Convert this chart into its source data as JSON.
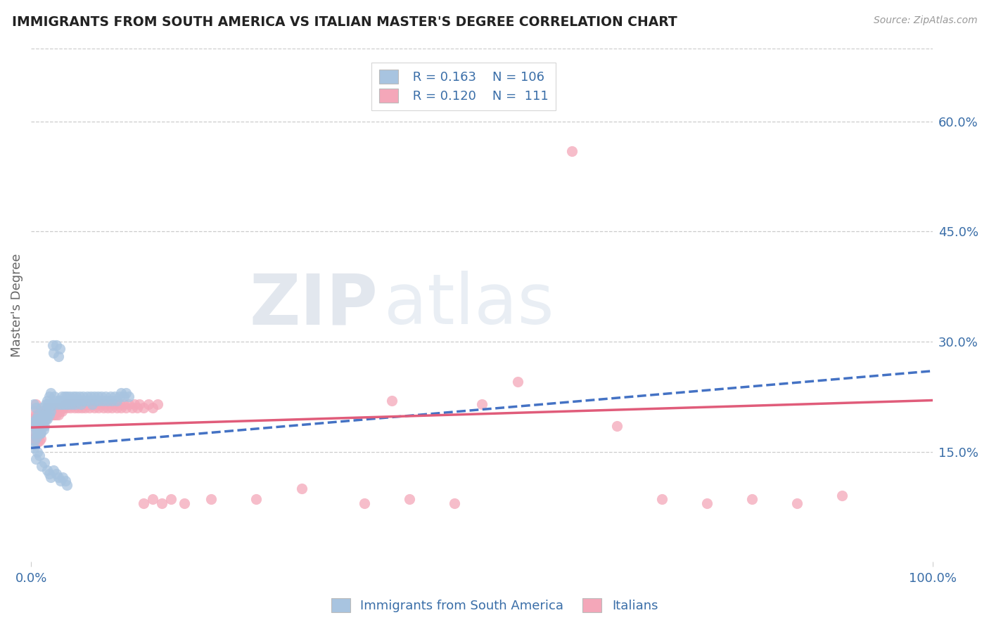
{
  "title": "IMMIGRANTS FROM SOUTH AMERICA VS ITALIAN MASTER'S DEGREE CORRELATION CHART",
  "source": "Source: ZipAtlas.com",
  "ylabel": "Master's Degree",
  "right_yticks": [
    "60.0%",
    "45.0%",
    "30.0%",
    "15.0%"
  ],
  "right_ytick_vals": [
    0.6,
    0.45,
    0.3,
    0.15
  ],
  "legend_label_1": "Immigrants from South America",
  "legend_label_2": "Italians",
  "legend_r1": "R = 0.163",
  "legend_n1": "N = 106",
  "legend_r2": "R = 0.120",
  "legend_n2": "N =  111",
  "color_blue": "#a8c4e0",
  "color_pink": "#f4a7b9",
  "color_blue_line": "#4472c4",
  "color_pink_line": "#e05c7a",
  "color_blue_text": "#3a6ea8",
  "watermark_zip": "ZIP",
  "watermark_atlas": "atlas",
  "xlim": [
    0.0,
    1.0
  ],
  "ylim": [
    0.0,
    0.7
  ],
  "blue_trend_x0": 0.0,
  "blue_trend_y0": 0.155,
  "blue_trend_x1": 1.0,
  "blue_trend_y1": 0.26,
  "pink_trend_x0": 0.0,
  "pink_trend_y0": 0.183,
  "pink_trend_x1": 1.0,
  "pink_trend_y1": 0.22,
  "blue_scatter_x": [
    0.002,
    0.003,
    0.003,
    0.004,
    0.004,
    0.005,
    0.005,
    0.006,
    0.006,
    0.007,
    0.007,
    0.008,
    0.008,
    0.009,
    0.009,
    0.01,
    0.01,
    0.011,
    0.011,
    0.012,
    0.012,
    0.013,
    0.013,
    0.014,
    0.014,
    0.015,
    0.015,
    0.016,
    0.016,
    0.017,
    0.018,
    0.018,
    0.019,
    0.02,
    0.02,
    0.021,
    0.022,
    0.022,
    0.023,
    0.024,
    0.025,
    0.026,
    0.027,
    0.028,
    0.029,
    0.03,
    0.031,
    0.032,
    0.033,
    0.034,
    0.035,
    0.036,
    0.037,
    0.038,
    0.04,
    0.041,
    0.042,
    0.043,
    0.045,
    0.046,
    0.047,
    0.049,
    0.05,
    0.052,
    0.054,
    0.055,
    0.057,
    0.058,
    0.06,
    0.062,
    0.064,
    0.066,
    0.068,
    0.07,
    0.072,
    0.074,
    0.076,
    0.078,
    0.08,
    0.083,
    0.085,
    0.088,
    0.09,
    0.093,
    0.095,
    0.098,
    0.1,
    0.103,
    0.105,
    0.108,
    0.003,
    0.005,
    0.007,
    0.009,
    0.012,
    0.015,
    0.018,
    0.02,
    0.022,
    0.025,
    0.028,
    0.03,
    0.033,
    0.035,
    0.038,
    0.04
  ],
  "blue_scatter_y": [
    0.19,
    0.175,
    0.215,
    0.185,
    0.165,
    0.195,
    0.21,
    0.18,
    0.17,
    0.195,
    0.175,
    0.185,
    0.2,
    0.18,
    0.195,
    0.175,
    0.195,
    0.19,
    0.175,
    0.21,
    0.195,
    0.185,
    0.2,
    0.18,
    0.195,
    0.185,
    0.205,
    0.195,
    0.215,
    0.2,
    0.22,
    0.195,
    0.215,
    0.2,
    0.225,
    0.21,
    0.205,
    0.23,
    0.215,
    0.295,
    0.285,
    0.225,
    0.22,
    0.295,
    0.215,
    0.28,
    0.22,
    0.29,
    0.215,
    0.225,
    0.215,
    0.22,
    0.225,
    0.215,
    0.225,
    0.215,
    0.22,
    0.225,
    0.215,
    0.22,
    0.225,
    0.215,
    0.225,
    0.22,
    0.225,
    0.215,
    0.22,
    0.225,
    0.22,
    0.225,
    0.22,
    0.225,
    0.215,
    0.225,
    0.22,
    0.225,
    0.22,
    0.225,
    0.22,
    0.225,
    0.22,
    0.225,
    0.22,
    0.225,
    0.22,
    0.225,
    0.23,
    0.225,
    0.23,
    0.225,
    0.155,
    0.14,
    0.15,
    0.145,
    0.13,
    0.135,
    0.125,
    0.12,
    0.115,
    0.125,
    0.12,
    0.115,
    0.11,
    0.115,
    0.11,
    0.105
  ],
  "pink_scatter_x": [
    0.002,
    0.003,
    0.003,
    0.004,
    0.004,
    0.005,
    0.005,
    0.006,
    0.007,
    0.007,
    0.008,
    0.008,
    0.009,
    0.01,
    0.01,
    0.011,
    0.012,
    0.013,
    0.014,
    0.015,
    0.016,
    0.017,
    0.018,
    0.019,
    0.02,
    0.021,
    0.022,
    0.023,
    0.024,
    0.025,
    0.026,
    0.027,
    0.028,
    0.029,
    0.03,
    0.031,
    0.032,
    0.033,
    0.034,
    0.035,
    0.036,
    0.038,
    0.04,
    0.042,
    0.044,
    0.046,
    0.048,
    0.05,
    0.052,
    0.054,
    0.056,
    0.058,
    0.06,
    0.062,
    0.065,
    0.067,
    0.07,
    0.072,
    0.075,
    0.078,
    0.08,
    0.083,
    0.085,
    0.088,
    0.09,
    0.093,
    0.095,
    0.098,
    0.1,
    0.103,
    0.105,
    0.108,
    0.112,
    0.115,
    0.118,
    0.12,
    0.125,
    0.13,
    0.135,
    0.14,
    0.002,
    0.003,
    0.004,
    0.005,
    0.006,
    0.007,
    0.008,
    0.009,
    0.01,
    0.011,
    0.4,
    0.5,
    0.54,
    0.6,
    0.65,
    0.7,
    0.75,
    0.8,
    0.85,
    0.9,
    0.37,
    0.42,
    0.47,
    0.3,
    0.25,
    0.2,
    0.17,
    0.155,
    0.145,
    0.135,
    0.125
  ],
  "pink_scatter_y": [
    0.195,
    0.185,
    0.205,
    0.195,
    0.185,
    0.2,
    0.215,
    0.19,
    0.195,
    0.185,
    0.2,
    0.19,
    0.195,
    0.19,
    0.205,
    0.195,
    0.195,
    0.205,
    0.195,
    0.2,
    0.195,
    0.21,
    0.2,
    0.205,
    0.2,
    0.21,
    0.2,
    0.205,
    0.2,
    0.21,
    0.2,
    0.21,
    0.2,
    0.21,
    0.2,
    0.21,
    0.205,
    0.21,
    0.205,
    0.21,
    0.21,
    0.215,
    0.21,
    0.215,
    0.21,
    0.215,
    0.21,
    0.215,
    0.21,
    0.215,
    0.21,
    0.215,
    0.21,
    0.215,
    0.21,
    0.215,
    0.21,
    0.215,
    0.21,
    0.215,
    0.21,
    0.215,
    0.21,
    0.215,
    0.21,
    0.215,
    0.21,
    0.215,
    0.21,
    0.215,
    0.21,
    0.215,
    0.21,
    0.215,
    0.21,
    0.215,
    0.21,
    0.215,
    0.21,
    0.215,
    0.175,
    0.168,
    0.165,
    0.172,
    0.168,
    0.163,
    0.17,
    0.165,
    0.175,
    0.168,
    0.22,
    0.215,
    0.245,
    0.56,
    0.185,
    0.085,
    0.08,
    0.085,
    0.08,
    0.09,
    0.08,
    0.085,
    0.08,
    0.1,
    0.085,
    0.085,
    0.08,
    0.085,
    0.08,
    0.085,
    0.08
  ]
}
